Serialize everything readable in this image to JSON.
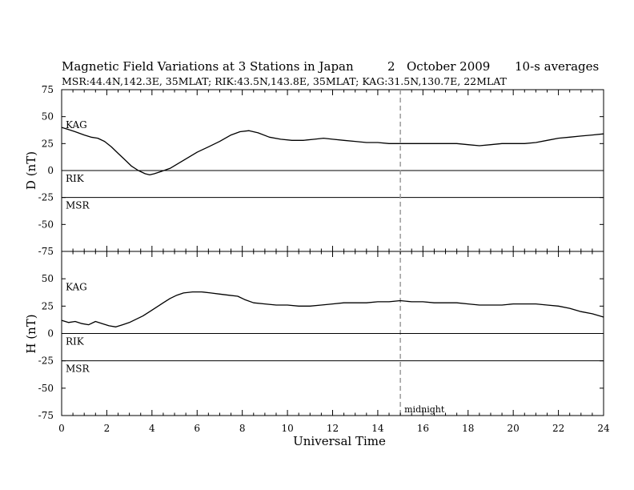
{
  "header": {
    "title": "Magnetic Field Variations at 3 Stations in Japan",
    "day": "2",
    "month_year": "October 2009",
    "averaging": "10-s averages",
    "stations_line": "MSR:44.4N,142.3E, 35MLAT;  RIK:43.5N,143.8E, 35MLAT;  KAG:31.5N,130.7E, 22MLAT"
  },
  "chart_data": [
    {
      "type": "line",
      "ylabel": "D (nT)",
      "ylim": [
        -75,
        75
      ],
      "yticks": [
        75,
        50,
        25,
        0,
        -25,
        -50,
        -75
      ],
      "xlim": [
        0,
        24
      ],
      "baselines": [
        {
          "name": "KAG",
          "offset": 25
        },
        {
          "name": "RIK",
          "offset": 0
        },
        {
          "name": "MSR",
          "offset": -25
        }
      ],
      "series": [
        {
          "name": "KAG",
          "x": [
            0,
            0.3,
            0.6,
            1.0,
            1.3,
            1.6,
            1.9,
            2.2,
            2.5,
            2.8,
            3.1,
            3.4,
            3.7,
            3.9,
            4.1,
            4.4,
            4.8,
            5.2,
            5.6,
            6.0,
            6.5,
            7.0,
            7.5,
            7.9,
            8.3,
            8.7,
            9.2,
            9.7,
            10.2,
            10.7,
            11.2,
            11.6,
            12.0,
            12.5,
            13.0,
            13.5,
            14.0,
            14.5,
            15.0,
            15.5,
            16.0,
            16.5,
            17.0,
            17.5,
            18.0,
            18.5,
            19.0,
            19.5,
            20.0,
            20.5,
            21.0,
            21.5,
            22.0,
            22.5,
            23.0,
            23.5,
            24.0
          ],
          "y": [
            40,
            38,
            36,
            33,
            31,
            30,
            27,
            22,
            16,
            10,
            4,
            0,
            -3,
            -4,
            -3,
            -1,
            2,
            7,
            12,
            17,
            22,
            27,
            33,
            36,
            37,
            35,
            31,
            29,
            28,
            28,
            29,
            30,
            29,
            28,
            27,
            26,
            26,
            25,
            25,
            25,
            25,
            25,
            25,
            25,
            24,
            23,
            24,
            25,
            25,
            25,
            26,
            28,
            30,
            31,
            32,
            33,
            34
          ]
        }
      ]
    },
    {
      "type": "line",
      "ylabel": "H (nT)",
      "ylim": [
        -75,
        75
      ],
      "yticks": [
        75,
        50,
        25,
        0,
        -25,
        -50,
        -75
      ],
      "xlim": [
        0,
        24
      ],
      "xticks": [
        0,
        2,
        4,
        6,
        8,
        10,
        12,
        14,
        16,
        18,
        20,
        22,
        24
      ],
      "xlabel": "Universal Time",
      "baselines": [
        {
          "name": "KAG",
          "offset": 25
        },
        {
          "name": "RIK",
          "offset": 0
        },
        {
          "name": "MSR",
          "offset": -25
        }
      ],
      "annotation": {
        "x": 15,
        "label": "midnight"
      },
      "series": [
        {
          "name": "KAG",
          "x": [
            0,
            0.3,
            0.6,
            0.9,
            1.2,
            1.5,
            1.8,
            2.1,
            2.4,
            2.7,
            3.0,
            3.3,
            3.6,
            3.9,
            4.2,
            4.5,
            4.8,
            5.1,
            5.4,
            5.8,
            6.2,
            6.6,
            7.0,
            7.4,
            7.8,
            8.1,
            8.5,
            9.0,
            9.5,
            10.0,
            10.5,
            11.0,
            11.5,
            12.0,
            12.5,
            13.0,
            13.5,
            14.0,
            14.5,
            15.0,
            15.5,
            16.0,
            16.5,
            17.0,
            17.5,
            18.0,
            18.5,
            19.0,
            19.5,
            20.0,
            20.5,
            21.0,
            21.5,
            22.0,
            22.5,
            23.0,
            23.5,
            24.0
          ],
          "y": [
            12,
            10,
            11,
            9,
            8,
            11,
            9,
            7,
            6,
            8,
            10,
            13,
            16,
            20,
            24,
            28,
            32,
            35,
            37,
            38,
            38,
            37,
            36,
            35,
            34,
            31,
            28,
            27,
            26,
            26,
            25,
            25,
            26,
            27,
            28,
            28,
            28,
            29,
            29,
            30,
            29,
            29,
            28,
            28,
            28,
            27,
            26,
            26,
            26,
            27,
            27,
            27,
            26,
            25,
            23,
            20,
            18,
            15
          ]
        }
      ]
    }
  ]
}
